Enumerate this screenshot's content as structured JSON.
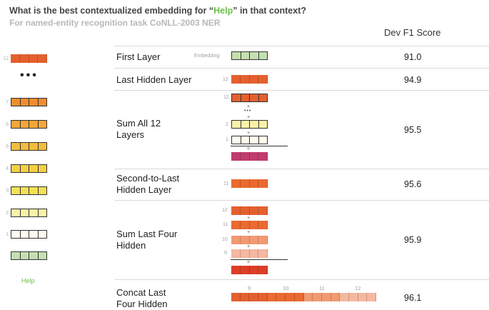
{
  "header": {
    "title_pre": "What is the best contextualized embedding for “",
    "title_highlight": "Help",
    "title_post": "” in that context?",
    "subtitle": "For named-entity recognition task CoNLL-2003 NER",
    "column_header": "Dev F1 Score"
  },
  "stack": {
    "top_label": "12",
    "dots": "•••",
    "layers": [
      "7",
      "6",
      "5",
      "4",
      "3",
      "2",
      "1"
    ],
    "word": "Help",
    "colors": {
      "12": "#e4602f",
      "7": "#f08c2e",
      "6": "#f3a63a",
      "5": "#f5bd3e",
      "4": "#f4cf46",
      "3": "#f3e056",
      "2": "#fbf1a8",
      "1": "#fdfbee",
      "embedding": "#c5e0b0"
    }
  },
  "rows": [
    {
      "label_lines": [
        "First Layer"
      ],
      "score": "91.0",
      "mini_label": "Embedding"
    },
    {
      "label_lines": [
        "Last Hidden Layer"
      ],
      "score": "94.9",
      "mini_label": "12"
    },
    {
      "label_lines": [
        "Sum All 12",
        "Layers"
      ],
      "score": "95.5",
      "mini_labels": [
        "12",
        "2",
        "1"
      ],
      "plus": "+",
      "dots": "•••",
      "equals": "="
    },
    {
      "label_lines": [
        "Second-to-Last",
        "Hidden Layer"
      ],
      "score": "95.6",
      "mini_label": "11"
    },
    {
      "label_lines": [
        "Sum Last Four",
        "Hidden"
      ],
      "score": "95.9",
      "mini_labels": [
        "12",
        "11",
        "10",
        "9"
      ],
      "plus": "+",
      "equals": "="
    },
    {
      "label_lines": [
        "Concat Last",
        "Four Hidden"
      ],
      "score": "96.1",
      "concat_ticks": [
        "9",
        "10",
        "11",
        "12"
      ]
    }
  ],
  "colors": {
    "accent_green": "#6cc04a",
    "sum_result_magenta": "#c03c6c",
    "sum4_result_red": "#dc3f28",
    "layer11": "#ea6a30",
    "layer10": "#f29a72",
    "layer9": "#f5b8a0"
  }
}
